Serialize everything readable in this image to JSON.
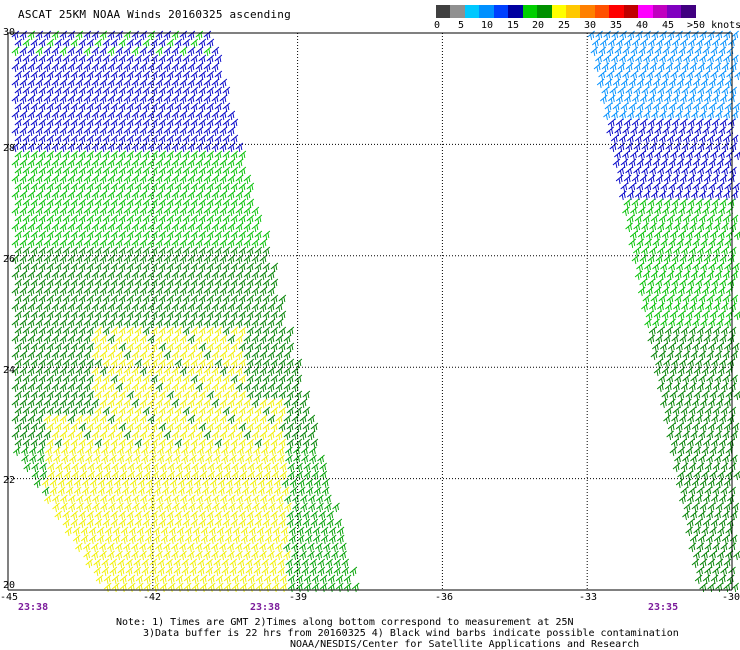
{
  "title": "ASCAT 25KM NOAA Winds 20160325 ascending",
  "colorbar": {
    "colors": [
      "#404040",
      "#909090",
      "#00c8ff",
      "#0090ff",
      "#0040ff",
      "#0000a0",
      "#00d000",
      "#009000",
      "#ffff00",
      "#ffc800",
      "#ff8000",
      "#ff5000",
      "#ff0000",
      "#c00000",
      "#ff00ff",
      "#c000c0",
      "#8000c0",
      "#400080"
    ],
    "labels": [
      "0",
      "5",
      "10",
      "15",
      "20",
      "25",
      "30",
      "35",
      "40",
      "45",
      ">50 knots"
    ]
  },
  "axes": {
    "lon_labels": [
      "-45",
      "-42",
      "-39",
      "-36",
      "-33",
      "-30"
    ],
    "lat_labels": [
      "30",
      "28",
      "26",
      "24",
      "22",
      "20"
    ]
  },
  "times": [
    "23:38",
    "23:38",
    "23:35"
  ],
  "notes": [
    "Note: 1) Times are GMT 2)Times along bottom correspond to measurement at 25N",
    "3)Data buffer is 22 hrs from 20160325 4) Black wind barbs indicate possible contamination",
    "NOAA/NESDIS/Center for Satellite Applications and Research"
  ]
}
